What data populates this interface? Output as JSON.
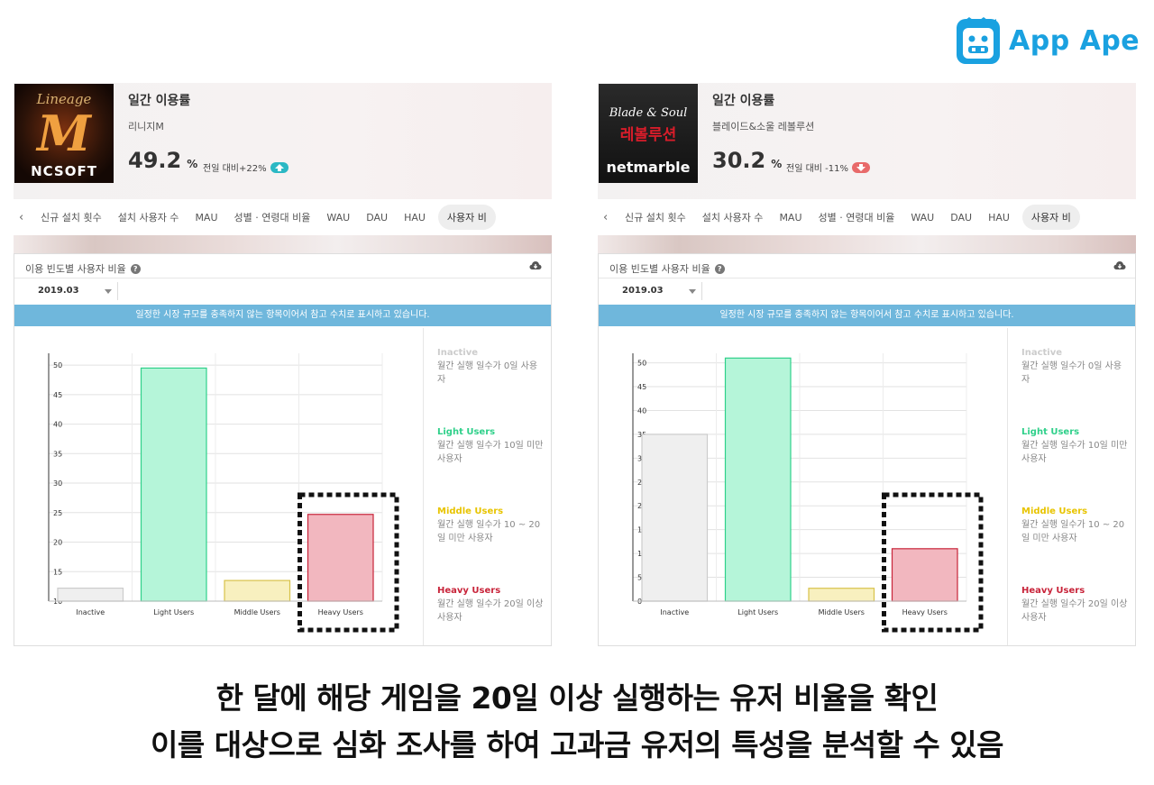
{
  "brand": {
    "name": "App Ape",
    "color": "#1aa1e0"
  },
  "caption": {
    "line1": "한 달에 해당 게임을 20일 이상 실행하는 유저 비율을 확인",
    "line2": "이를 대상으로 심화 조사를 하여 고과금 유저의 특성을 분석할 수 있음"
  },
  "panels": [
    {
      "icon": {
        "title": "Lineage",
        "letter": "M",
        "publisher": "NCSOFT"
      },
      "header": {
        "title": "일간 이용률",
        "game": "리니지M",
        "percent": "49.2",
        "unit": "%",
        "compare": "전일 대비+22%",
        "trend": "up"
      },
      "tabs": [
        "신규 설치 횟수",
        "설치 사용자 수",
        "MAU",
        "성별 · 연령대 비율",
        "WAU",
        "DAU",
        "HAU",
        "사용자 비"
      ],
      "card": {
        "title": "이용 빈도별 사용자 비율",
        "month": "2019.03",
        "notice": "일정한 시장 규모를 충족하지 않는 항목이어서 참고 수치로 표시하고 있습니다."
      },
      "legend": [
        {
          "name": "Inactive",
          "desc": "월간 실행 일수가 0일 사용자",
          "color": "#c8c8c8"
        },
        {
          "name": "Light Users",
          "desc": "월간 실행 일수가 10일 미만 사용자",
          "color": "#2fd08a"
        },
        {
          "name": "Middle Users",
          "desc": "월간 실행 일수가 10 ~ 20일 미만 사용자",
          "color": "#e8c400"
        },
        {
          "name": "Heavy Users",
          "desc": "월간 실행 일수가 20일 이상 사용자",
          "color": "#c8243a"
        }
      ]
    },
    {
      "icon": {
        "title": "Blade & Soul",
        "subtitle": "레볼루션",
        "publisher": "netmarble"
      },
      "header": {
        "title": "일간 이용률",
        "game": "블레이드&소울 레볼루션",
        "percent": "30.2",
        "unit": "%",
        "compare": "전일 대비 -11%",
        "trend": "down"
      },
      "tabs": [
        "신규 설치 횟수",
        "설치 사용자 수",
        "MAU",
        "성별 · 연령대 비율",
        "WAU",
        "DAU",
        "HAU",
        "사용자 비"
      ],
      "card": {
        "title": "이용 빈도별 사용자 비율",
        "month": "2019.03",
        "notice": "일정한 시장 규모를 충족하지 않는 항목이어서 참고 수치로 표시하고 있습니다."
      },
      "legend": [
        {
          "name": "Inactive",
          "desc": "월간 실행 일수가 0일 사용자",
          "color": "#c8c8c8"
        },
        {
          "name": "Light Users",
          "desc": "월간 실행 일수가 10일 미만 사용자",
          "color": "#2fd08a"
        },
        {
          "name": "Middle Users",
          "desc": "월간 실행 일수가 10 ~ 20일 미만 사용자",
          "color": "#e8c400"
        },
        {
          "name": "Heavy Users",
          "desc": "월간 실행 일수가 20일 이상 사용자",
          "color": "#c8243a"
        }
      ]
    }
  ],
  "chart_data": [
    {
      "type": "bar",
      "categories": [
        "Inactive",
        "Light Users",
        "Middle Users",
        "Heavy Users"
      ],
      "values": [
        12.2,
        49.5,
        13.5,
        24.7
      ],
      "yticks": [
        10,
        15,
        20,
        25,
        30,
        35,
        40,
        45,
        50
      ],
      "ylim": [
        10,
        52
      ],
      "colors": {
        "fill": [
          "#efefef",
          "#b5f5d9",
          "#f8f0bf",
          "#f2b7bf"
        ],
        "stroke": [
          "#cccccc",
          "#2fd08a",
          "#d8c24a",
          "#c8243a"
        ]
      },
      "highlight": "Heavy Users",
      "grid": true
    },
    {
      "type": "bar",
      "categories": [
        "Inactive",
        "Light Users",
        "Middle Users",
        "Heavy Users"
      ],
      "values": [
        35,
        51,
        2.7,
        11
      ],
      "yticks": [
        0,
        5,
        10,
        15,
        20,
        25,
        30,
        35,
        40,
        45,
        50
      ],
      "ylim": [
        0,
        52
      ],
      "colors": {
        "fill": [
          "#efefef",
          "#b5f5d9",
          "#f8f0bf",
          "#f2b7bf"
        ],
        "stroke": [
          "#cccccc",
          "#2fd08a",
          "#d8c24a",
          "#c8243a"
        ]
      },
      "highlight": "Heavy Users",
      "grid": true
    }
  ]
}
